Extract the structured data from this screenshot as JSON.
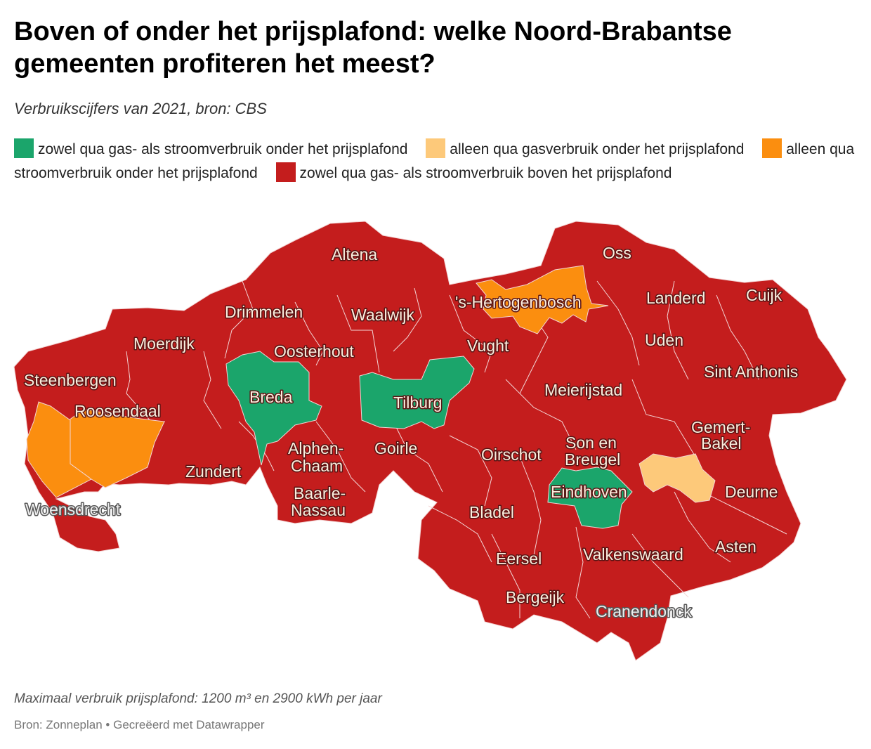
{
  "title": "Boven of onder het prijsplafond: welke Noord-Brabantse gemeenten profiteren het meest?",
  "subtitle": "Verbruikscijfers van 2021, bron: CBS",
  "colors": {
    "green": "#1ba56b",
    "peach": "#fdc97a",
    "orange": "#fb8e0f",
    "red": "#c41d1d",
    "border": "#f3d5d5"
  },
  "legend": [
    {
      "label": "zowel qua gas- als stroomverbruik onder het prijsplafond",
      "color": "#1ba56b"
    },
    {
      "label": "alleen qua gasverbruik onder het prijsplafond",
      "color": "#fdc97a"
    },
    {
      "label": "alleen qua stroomverbruik onder het prijsplafond",
      "color": "#fb8e0f"
    },
    {
      "label": "zowel qua gas- als stroomverbruik boven het prijsplafond",
      "color": "#c41d1d"
    }
  ],
  "map_labels": {
    "altena": "Altena",
    "oss": "Oss",
    "drimmelen": "Drimmelen",
    "waalwijk": "Waalwijk",
    "hertogenbosch": "'s-Hertogenbosch",
    "landerd": "Landerd",
    "cuijk": "Cuijk",
    "moerdijk": "Moerdijk",
    "oosterhout": "Oosterhout",
    "vught": "Vught",
    "uden": "Uden",
    "steenbergen": "Steenbergen",
    "breda": "Breda",
    "tilburg": "Tilburg",
    "meierijstad": "Meierijstad",
    "sint_anthonis": "Sint Anthonis",
    "roosendaal": "Roosendaal",
    "gemert_bakel_1": "Gemert-",
    "gemert_bakel_2": "Bakel",
    "alphen_1": "Alphen-",
    "alphen_2": "Chaam",
    "goirle": "Goirle",
    "zundert": "Zundert",
    "oirschot": "Oirschot",
    "son_1": "Son en",
    "son_2": "Breugel",
    "eindhoven": "Eindhoven",
    "deurne": "Deurne",
    "baarle_1": "Baarle-",
    "baarle_2": "Nassau",
    "woensdrecht": "Woensdrecht",
    "bladel": "Bladel",
    "asten": "Asten",
    "eersel": "Eersel",
    "valkenswaard": "Valkenswaard",
    "bergeijk": "Bergeijk",
    "cranendonck": "Cranendonck"
  },
  "notes": "Maximaal verbruik prijsplafond: 1200 m³ en 2900 kWh per jaar",
  "source": "Bron: Zonneplan • Gecreëerd met Datawrapper"
}
